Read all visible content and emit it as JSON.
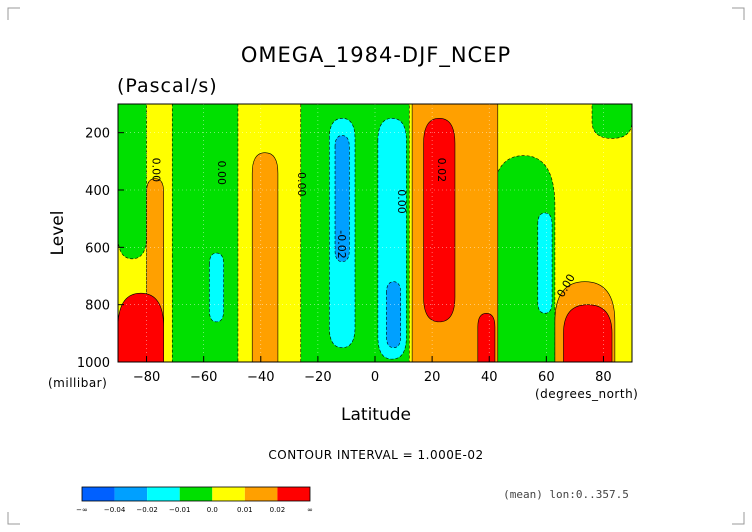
{
  "chart_data": {
    "type": "contour",
    "title": "OMEGA_1984-DJF_NCEP",
    "units": "(Pascal/s)",
    "xlabel": "Latitude",
    "xunits": "(degrees_north)",
    "ylabel": "Level",
    "yunits": "(millibar)",
    "xlim": [
      -90,
      90
    ],
    "ylim": [
      1000,
      100
    ],
    "x_ticks": [
      -80,
      -60,
      -40,
      -20,
      0,
      20,
      40,
      60,
      80
    ],
    "y_ticks": [
      200,
      400,
      600,
      800,
      1000
    ],
    "contour_interval_text": "CONTOUR INTERVAL = 1.000E-02",
    "mean_text": "(mean) lon:0..357.5",
    "contour_labels": [
      "0.00",
      "0.00",
      "0.00",
      "-0.02",
      "0.00",
      "0.02",
      "0.00"
    ],
    "colorbar": {
      "colors": [
        "#0060ff",
        "#00a0ff",
        "#00ffff",
        "#00e000",
        "#ffff00",
        "#ffa000",
        "#ff0000"
      ],
      "labels": [
        "-∞",
        "-0.04",
        "-0.02",
        "-0.01",
        "0.0",
        "0.01",
        "0.02",
        "∞"
      ]
    },
    "regions": [
      {
        "level": "positive_weak",
        "color": "#ffff00",
        "x": [
          -90,
          90
        ],
        "y": [
          100,
          1000
        ]
      },
      {
        "level": "negative_weak",
        "color": "#00e000",
        "x": [
          -90,
          -80
        ],
        "y": [
          100,
          640
        ]
      },
      {
        "level": "negative_weak",
        "color": "#00e000",
        "x": [
          -71,
          -48
        ],
        "y": [
          100,
          1000
        ]
      },
      {
        "level": "negative_weak",
        "color": "#00e000",
        "x": [
          -26,
          12
        ],
        "y": [
          100,
          1000
        ]
      },
      {
        "level": "negative_weak",
        "color": "#00e000",
        "x": [
          41,
          63
        ],
        "y": [
          280,
          1000
        ]
      },
      {
        "level": "negative_weak",
        "color": "#00e000",
        "x": [
          76,
          90
        ],
        "y": [
          100,
          220
        ]
      },
      {
        "level": "negative_mid",
        "color": "#00ffff",
        "x": [
          -16,
          -7
        ],
        "y": [
          150,
          950
        ]
      },
      {
        "level": "negative_mid",
        "color": "#00ffff",
        "x": [
          1,
          11
        ],
        "y": [
          150,
          990
        ]
      },
      {
        "level": "negative_mid",
        "color": "#00ffff",
        "x": [
          -58,
          -53
        ],
        "y": [
          620,
          860
        ]
      },
      {
        "level": "negative_mid",
        "color": "#00ffff",
        "x": [
          57,
          62
        ],
        "y": [
          480,
          830
        ]
      },
      {
        "level": "negative_strong",
        "color": "#00a0ff",
        "x": [
          -14,
          -9
        ],
        "y": [
          210,
          650
        ]
      },
      {
        "level": "negative_strong",
        "color": "#00a0ff",
        "x": [
          4,
          9
        ],
        "y": [
          720,
          950
        ]
      },
      {
        "level": "positive_mid",
        "color": "#ffa000",
        "x": [
          -43,
          -34
        ],
        "y": [
          270,
          1000
        ]
      },
      {
        "level": "positive_mid",
        "color": "#ffa000",
        "x": [
          -80,
          -74
        ],
        "y": [
          360,
          1000
        ]
      },
      {
        "level": "positive_mid",
        "color": "#ffa000",
        "x": [
          13,
          43
        ],
        "y": [
          100,
          1000
        ]
      },
      {
        "level": "positive_mid",
        "color": "#ffa000",
        "x": [
          63,
          84
        ],
        "y": [
          720,
          1000
        ]
      },
      {
        "level": "positive_strong",
        "color": "#ff0000",
        "x": [
          -90,
          -74
        ],
        "y": [
          760,
          1000
        ]
      },
      {
        "level": "positive_strong",
        "color": "#ff0000",
        "x": [
          17,
          28
        ],
        "y": [
          150,
          860
        ]
      },
      {
        "level": "positive_strong",
        "color": "#ff0000",
        "x": [
          36,
          42
        ],
        "y": [
          830,
          1000
        ]
      },
      {
        "level": "positive_strong",
        "color": "#ff0000",
        "x": [
          66,
          83
        ],
        "y": [
          800,
          1000
        ]
      }
    ]
  }
}
